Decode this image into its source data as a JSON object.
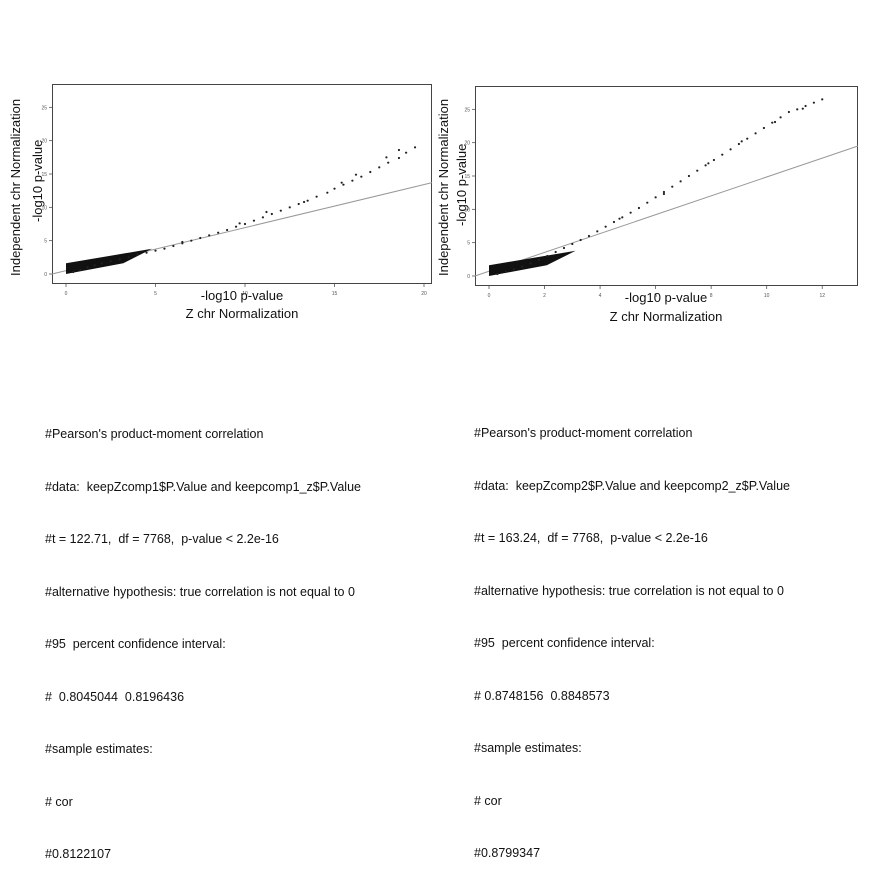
{
  "chart_data": [
    {
      "type": "scatter",
      "title": "",
      "ylabel_outer": "Independent chr Normalization",
      "ylabel_inner": "-log10 p-value",
      "xlabel_inner": "-log10 p-value",
      "xlabel_outer": "Z chr Normalization",
      "xlim": [
        0,
        20
      ],
      "ylim": [
        0,
        27
      ],
      "x_ticks": [
        0,
        5,
        10,
        15,
        20
      ],
      "y_ticks": [
        0,
        5,
        10,
        15,
        20,
        25
      ],
      "reference_line": {
        "slope": 0.7,
        "intercept": -0.3
      },
      "points": [
        [
          0.4,
          0.3
        ],
        [
          0.8,
          0.6
        ],
        [
          1.2,
          1.0
        ],
        [
          1.6,
          1.3
        ],
        [
          2.0,
          1.6
        ],
        [
          2.5,
          1.9
        ],
        [
          3.0,
          2.2
        ],
        [
          3.5,
          2.5
        ],
        [
          4.0,
          2.9
        ],
        [
          4.5,
          3.2
        ],
        [
          5.0,
          3.5
        ],
        [
          5.5,
          3.8
        ],
        [
          6.0,
          4.2
        ],
        [
          6.5,
          4.6
        ],
        [
          7.0,
          5.0
        ],
        [
          7.5,
          5.4
        ],
        [
          8.0,
          5.8
        ],
        [
          8.5,
          6.2
        ],
        [
          9.0,
          6.6
        ],
        [
          9.5,
          7.1
        ],
        [
          10.0,
          7.5
        ],
        [
          10.5,
          8.0
        ],
        [
          11.0,
          8.5
        ],
        [
          11.5,
          9.0
        ],
        [
          12.0,
          9.5
        ],
        [
          12.5,
          10.0
        ],
        [
          13.0,
          10.5
        ],
        [
          13.5,
          11.0
        ],
        [
          14.0,
          11.6
        ],
        [
          14.6,
          12.2
        ],
        [
          15.0,
          12.8
        ],
        [
          15.5,
          13.4
        ],
        [
          16.0,
          14.0
        ],
        [
          16.5,
          14.6
        ],
        [
          17.0,
          15.3
        ],
        [
          17.5,
          16.0
        ],
        [
          18.0,
          16.7
        ],
        [
          18.6,
          17.4
        ],
        [
          19.0,
          18.2
        ],
        [
          19.5,
          19.0
        ],
        [
          6.5,
          4.8
        ],
        [
          9.7,
          7.6
        ],
        [
          11.2,
          9.3
        ],
        [
          13.3,
          10.8
        ],
        [
          15.4,
          13.7
        ],
        [
          16.2,
          14.9
        ],
        [
          17.9,
          17.5
        ],
        [
          18.6,
          18.6
        ]
      ],
      "stats": [
        "#Pearson's product-moment correlation",
        "#data:  keepZcomp1$P.Value and keepcomp1_z$P.Value",
        "#t = 122.71,  df = 7768,  p-value < 2.2e-16",
        "#alternative hypothesis: true correlation is not equal to 0",
        "#95  percent confidence interval:",
        "#  0.8045044  0.8196436",
        "#sample estimates:",
        "# cor",
        "#0.8122107"
      ]
    },
    {
      "type": "scatter",
      "title": "",
      "ylabel_outer": "Independent chr Normalization",
      "ylabel_inner": "-log10 p-value",
      "xlabel_inner": "-log10 p-value",
      "xlabel_outer": "Z chr Normalization",
      "xlim": [
        0,
        13
      ],
      "ylim": [
        0,
        27
      ],
      "x_ticks": [
        0,
        2,
        4,
        6,
        8,
        10,
        12
      ],
      "y_ticks": [
        0,
        5,
        10,
        15,
        20,
        25
      ],
      "reference_line": {
        "slope": 1.5,
        "intercept": 0
      },
      "points": [
        [
          0.3,
          0.3
        ],
        [
          0.6,
          0.6
        ],
        [
          0.9,
          1.0
        ],
        [
          1.2,
          1.4
        ],
        [
          1.5,
          1.9
        ],
        [
          1.8,
          2.4
        ],
        [
          2.1,
          3.0
        ],
        [
          2.4,
          3.6
        ],
        [
          2.7,
          4.2
        ],
        [
          3.0,
          4.8
        ],
        [
          3.3,
          5.4
        ],
        [
          3.6,
          6.0
        ],
        [
          3.9,
          6.7
        ],
        [
          4.2,
          7.4
        ],
        [
          4.5,
          8.1
        ],
        [
          4.8,
          8.8
        ],
        [
          5.1,
          9.5
        ],
        [
          5.4,
          10.2
        ],
        [
          5.7,
          11.0
        ],
        [
          6.0,
          11.8
        ],
        [
          6.3,
          12.6
        ],
        [
          6.6,
          13.4
        ],
        [
          6.9,
          14.2
        ],
        [
          7.2,
          15.0
        ],
        [
          7.5,
          15.8
        ],
        [
          7.8,
          16.6
        ],
        [
          8.1,
          17.4
        ],
        [
          8.4,
          18.2
        ],
        [
          8.7,
          19.0
        ],
        [
          9.0,
          19.8
        ],
        [
          9.3,
          20.6
        ],
        [
          9.6,
          21.4
        ],
        [
          9.9,
          22.2
        ],
        [
          10.2,
          23.0
        ],
        [
          10.5,
          23.8
        ],
        [
          10.8,
          24.6
        ],
        [
          11.1,
          25.0
        ],
        [
          11.4,
          25.5
        ],
        [
          11.7,
          26.0
        ],
        [
          12.0,
          26.5
        ],
        [
          4.7,
          8.6
        ],
        [
          6.3,
          12.3
        ],
        [
          7.9,
          16.9
        ],
        [
          9.1,
          20.2
        ],
        [
          10.3,
          23.1
        ],
        [
          11.3,
          25.1
        ]
      ],
      "stats": [
        "#Pearson's product-moment correlation",
        "#data:  keepZcomp2$P.Value and keepcomp2_z$P.Value",
        "#t = 163.24,  df = 7768,  p-value < 2.2e-16",
        "#alternative hypothesis: true correlation is not equal to 0",
        "#95  percent confidence interval:",
        "# 0.8748156  0.8848573",
        "#sample estimates:",
        "# cor",
        "#0.8799347"
      ]
    }
  ]
}
